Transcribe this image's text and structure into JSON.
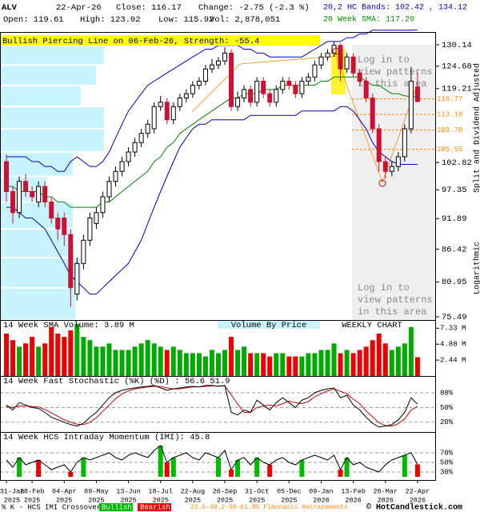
{
  "header": {
    "symbol": "ALV",
    "date": "22-Apr-26",
    "close": "Close: 116.17",
    "change": "Change: -2.75 (-2.3 %)",
    "bands": "20,2 HC Bands: 102.42 , 134.12",
    "open": "Open: 119.61",
    "high": "High: 123.02",
    "low": "Low: 115.92",
    "volume": "Vol: 2,878,051",
    "sma": "20 Week SMA: 117.20"
  },
  "chart_data": [
    {
      "type": "candlestick",
      "title": "Bullish Piercing Line on 06-Feb-26, Strength: -55.4",
      "log_scale": true,
      "categories": [
        "31-Jan",
        null,
        null,
        null,
        "28-Feb",
        null,
        null,
        null,
        null,
        "04-Apr",
        null,
        null,
        null,
        null,
        "09-May",
        null,
        null,
        null,
        null,
        "13-Jun",
        null,
        null,
        null,
        null,
        "18-Jul",
        null,
        null,
        null,
        null,
        "22-Aug",
        null,
        null,
        null,
        null,
        "26-Sep",
        null,
        null,
        null,
        null,
        "31-Oct",
        null,
        null,
        null,
        null,
        "05-Dec",
        null,
        null,
        null,
        null,
        "09-Jan",
        null,
        null,
        null,
        null,
        "13-Feb",
        null,
        null,
        null,
        null,
        "20-Mar",
        null,
        null,
        null,
        null,
        "22-Apr"
      ],
      "category_years": [
        "2025",
        null,
        null,
        null,
        "2025",
        null,
        null,
        null,
        null,
        "2025",
        null,
        null,
        null,
        null,
        "2025",
        null,
        null,
        null,
        null,
        "2025",
        null,
        null,
        null,
        null,
        "2025",
        null,
        null,
        null,
        null,
        "2025",
        null,
        null,
        null,
        null,
        "2025",
        null,
        null,
        null,
        null,
        "2025",
        null,
        null,
        null,
        null,
        "2025",
        null,
        null,
        null,
        null,
        "2026",
        null,
        null,
        null,
        null,
        "2026",
        null,
        null,
        null,
        null,
        "2026",
        null,
        null,
        null,
        null,
        "2026"
      ],
      "open": [
        103,
        97,
        93,
        99,
        97,
        95,
        98,
        95,
        92,
        92,
        89,
        79,
        84,
        88,
        91,
        93,
        96,
        99,
        101,
        103,
        105,
        107,
        109,
        110,
        115,
        116,
        112,
        115,
        117,
        118,
        120,
        121,
        124,
        125,
        126,
        128,
        115,
        117,
        119,
        116,
        121,
        118,
        116,
        119,
        121,
        120,
        118,
        121,
        122,
        125,
        127,
        128,
        130,
        124,
        127,
        123,
        121,
        117,
        110,
        103,
        101,
        102,
        104,
        110,
        119.61
      ],
      "high": [
        104.5,
        98,
        100,
        100.5,
        98,
        99,
        99,
        96,
        93,
        93,
        90,
        85,
        89,
        93,
        94,
        97,
        100,
        102,
        104,
        106,
        108,
        110,
        112,
        116,
        117.5,
        117,
        116,
        118,
        119,
        121,
        122,
        125,
        126.5,
        127,
        129.5,
        129,
        118.5,
        120,
        120,
        122,
        122,
        119,
        120,
        122,
        122,
        121,
        122,
        123,
        126,
        128,
        129,
        131,
        130.5,
        128,
        128,
        124,
        122,
        118,
        111,
        104,
        103,
        105,
        111,
        124.5,
        123.02
      ],
      "low": [
        95,
        91,
        92,
        96,
        95,
        94,
        94,
        91,
        88,
        87,
        77,
        78,
        83,
        87,
        90,
        92,
        95,
        98,
        100,
        102,
        104,
        106,
        108,
        109,
        114,
        111,
        111,
        114,
        116,
        117,
        119,
        120,
        123,
        124,
        125,
        114,
        114,
        116,
        115,
        115,
        117,
        115,
        115,
        118,
        119,
        117,
        117,
        120,
        121,
        124,
        126,
        127,
        121,
        123,
        122,
        120,
        116,
        109,
        101,
        99.5,
        100,
        101,
        103,
        109,
        115.92
      ],
      "close": [
        97,
        93,
        99,
        97,
        96,
        98,
        95,
        92,
        90,
        89,
        80,
        84,
        88,
        92,
        93,
        96,
        99,
        101,
        103,
        105,
        107,
        109,
        111,
        115,
        116,
        112,
        115,
        117,
        118,
        120,
        121,
        124,
        125,
        126,
        128,
        115,
        117,
        119,
        116,
        121,
        118,
        116,
        119,
        121,
        120,
        118,
        121,
        122,
        125,
        127,
        128,
        130,
        124,
        127,
        123,
        121,
        117,
        110,
        103,
        101,
        102,
        104,
        110,
        121,
        116.17
      ],
      "up_color": "#ffffff",
      "down_color": "#cc1133",
      "band_upper": [
        104,
        104,
        104,
        104,
        103,
        103,
        102,
        102,
        101,
        101,
        103,
        104,
        103,
        102,
        102,
        103,
        105,
        108,
        111,
        114,
        116,
        118,
        120,
        121,
        122,
        123,
        124,
        125,
        126,
        127,
        128,
        129,
        129,
        130,
        130,
        130,
        130,
        129,
        129,
        128,
        128,
        127,
        127,
        127,
        127,
        127,
        127,
        128,
        129,
        130,
        131,
        131,
        131,
        132,
        132,
        133,
        133,
        134,
        134,
        134,
        134,
        134,
        134,
        134,
        134.12
      ],
      "band_lower": [
        94,
        94,
        93,
        92,
        92,
        91,
        90,
        88,
        86,
        84,
        82,
        81,
        80,
        79,
        79,
        80,
        81,
        82,
        83,
        84,
        86,
        88,
        91,
        94,
        97,
        100,
        103,
        106,
        108,
        110,
        111,
        111,
        112,
        112,
        112,
        112,
        112,
        112,
        113,
        113,
        113,
        113,
        113,
        113,
        113,
        113,
        114,
        114,
        114,
        114,
        114,
        114,
        115,
        115,
        114,
        112,
        110,
        107,
        105,
        104,
        103,
        102.5,
        102.42,
        102.42,
        102.42
      ],
      "band_color": "#0000cc",
      "sma": [
        98,
        98,
        97,
        97,
        97,
        97,
        96,
        96,
        95,
        95,
        94,
        94,
        94,
        94,
        94,
        95,
        95,
        96,
        97,
        98,
        99,
        100,
        101,
        103,
        104,
        106,
        107,
        109,
        110,
        111,
        112,
        113,
        114,
        115,
        116,
        117,
        117,
        118,
        118,
        118,
        119,
        119,
        119,
        120,
        120,
        120,
        120,
        120,
        120,
        121,
        121,
        122,
        122,
        122,
        122,
        122,
        121,
        120,
        120,
        119,
        118,
        118,
        117.5,
        117.3,
        117.2
      ],
      "sma_color": "#008800",
      "ylim": [
        75.49,
        130.14
      ],
      "yticks": [
        75.49,
        80.95,
        86.42,
        91.89,
        97.35,
        102.82,
        119.21,
        124.68,
        130.14
      ],
      "fib_levels": [
        116.77,
        113.18,
        {
          "value": 109.7,
          "label": "109.70"
        },
        105.55
      ],
      "fib_color": "#ff8800",
      "volume_by_price": {
        "label": "Volume By Price",
        "bins": [
          75,
          80,
          85,
          90,
          95,
          100,
          105,
          110,
          115,
          120,
          125,
          130
        ],
        "values": [
          29,
          31,
          28,
          28,
          18,
          28,
          40,
          40,
          31,
          37,
          40
        ],
        "color": "#c8f4ff"
      },
      "pattern_note": [
        "Log in to",
        "view patterns",
        "in this area"
      ],
      "side_labels": [
        "Split and Dividend Adjusted",
        "Logarithmic"
      ]
    },
    {
      "type": "bar",
      "title": "14 Week SMA Volume: 3.89 M",
      "note": "WEEKLY CHART",
      "values": [
        6.5,
        5.5,
        4.5,
        5,
        6,
        4.5,
        5,
        7.5,
        6.5,
        6,
        7,
        8,
        6,
        5.5,
        4.5,
        4.5,
        5,
        4,
        4,
        4,
        4.5,
        5,
        5.5,
        5,
        4.5,
        4,
        4.5,
        4,
        3.5,
        3.5,
        3.5,
        3,
        4,
        3.5,
        4,
        6,
        4,
        4.5,
        3.5,
        3.5,
        3.5,
        3,
        3.5,
        3.5,
        3,
        3,
        3,
        3.5,
        3.5,
        4,
        4,
        5,
        3.5,
        4,
        3.5,
        4,
        4.5,
        5.5,
        6.5,
        5,
        4,
        4.5,
        5,
        7.5,
        2.88
      ],
      "up_color": "#00aa00",
      "down_color": "#ee0000",
      "ylim": [
        0,
        8.1
      ],
      "yticks": [
        {
          "value": 2.44,
          "label": "2.44 M"
        },
        {
          "value": 4.88,
          "label": "4.88 M"
        },
        {
          "value": 7.33,
          "label": "7.33 M"
        }
      ]
    },
    {
      "type": "line",
      "title": "14 Week Fast Stochastic (%K) (%D) : 56.6 51.9",
      "series": [
        {
          "color": "#000000",
          "values": [
            55,
            45,
            60,
            55,
            50,
            48,
            40,
            30,
            25,
            20,
            15,
            12,
            18,
            30,
            40,
            55,
            70,
            80,
            85,
            88,
            90,
            92,
            93,
            95,
            90,
            85,
            88,
            90,
            92,
            93,
            92,
            95,
            95,
            93,
            95,
            40,
            35,
            45,
            40,
            65,
            55,
            45,
            60,
            70,
            60,
            50,
            65,
            70,
            80,
            85,
            88,
            90,
            70,
            75,
            55,
            45,
            30,
            18,
            10,
            12,
            15,
            25,
            40,
            70,
            56.6
          ]
        },
        {
          "color": "#cc0000",
          "values": [
            52,
            50,
            53,
            53,
            52,
            51,
            46,
            39,
            32,
            25,
            20,
            16,
            15,
            20,
            29,
            42,
            55,
            68,
            78,
            84,
            88,
            90,
            92,
            93,
            93,
            90,
            88,
            88,
            90,
            92,
            92,
            93,
            94,
            94,
            94,
            76,
            57,
            40,
            40,
            50,
            53,
            55,
            53,
            58,
            63,
            60,
            58,
            62,
            72,
            78,
            84,
            88,
            83,
            78,
            67,
            58,
            43,
            31,
            19,
            13,
            12,
            17,
            27,
            45,
            51.9
          ]
        }
      ],
      "ylim": [
        0,
        100
      ],
      "yticks": [
        {
          "value": 20,
          "label": "20%"
        },
        {
          "value": 50,
          "label": "50%"
        },
        {
          "value": 80,
          "label": "80%"
        }
      ],
      "grid": true
    },
    {
      "type": "line",
      "title": "14 Week HCS Intraday Momentum (IMI): 45.8",
      "series": [
        {
          "color": "#000000",
          "values": [
            55,
            40,
            60,
            45,
            50,
            55,
            45,
            35,
            40,
            45,
            30,
            50,
            60,
            55,
            60,
            65,
            70,
            60,
            55,
            65,
            70,
            65,
            60,
            75,
            85,
            50,
            60,
            65,
            70,
            60,
            55,
            70,
            65,
            60,
            75,
            35,
            55,
            60,
            45,
            60,
            50,
            45,
            55,
            60,
            50,
            45,
            55,
            60,
            65,
            60,
            55,
            65,
            35,
            60,
            45,
            50,
            40,
            35,
            30,
            45,
            55,
            60,
            65,
            70,
            45.8
          ]
        }
      ],
      "bars": [
        {
          "name": "Bullish",
          "color": "#00bb00",
          "values": [
            null,
            null,
            60,
            null,
            null,
            null,
            null,
            null,
            null,
            null,
            null,
            null,
            60,
            null,
            null,
            null,
            null,
            null,
            null,
            null,
            null,
            null,
            null,
            null,
            85,
            null,
            60,
            null,
            null,
            null,
            null,
            null,
            null,
            60,
            null,
            null,
            55,
            null,
            null,
            60,
            null,
            null,
            null,
            null,
            null,
            null,
            55,
            null,
            null,
            null,
            null,
            null,
            null,
            60,
            null,
            null,
            null,
            null,
            null,
            null,
            null,
            null,
            65,
            null,
            null
          ]
        },
        {
          "name": "Bearish",
          "color": "#ee0000",
          "values": [
            null,
            null,
            null,
            null,
            null,
            55,
            null,
            null,
            null,
            null,
            30,
            null,
            null,
            null,
            null,
            null,
            null,
            null,
            null,
            null,
            null,
            null,
            null,
            null,
            null,
            50,
            null,
            null,
            null,
            null,
            null,
            null,
            null,
            null,
            null,
            35,
            null,
            null,
            null,
            null,
            null,
            45,
            null,
            null,
            null,
            null,
            null,
            null,
            null,
            null,
            null,
            null,
            35,
            null,
            null,
            null,
            null,
            null,
            null,
            null,
            null,
            null,
            null,
            null,
            45.8
          ]
        }
      ],
      "ylim": [
        20,
        100
      ],
      "yticks": [
        {
          "value": 30,
          "label": "30%"
        },
        {
          "value": 50,
          "label": "50%"
        },
        {
          "value": 70,
          "label": "70%"
        }
      ],
      "grid": true
    }
  ],
  "footer": {
    "crossover": "% K - HCS IMI Crossover:",
    "bullish": "Bullish",
    "bearish": "Bearish",
    "fib": "23.6-38.2-50-61.8% Fibonacci Retracements",
    "copyright": "© HotCandlestick.com"
  }
}
